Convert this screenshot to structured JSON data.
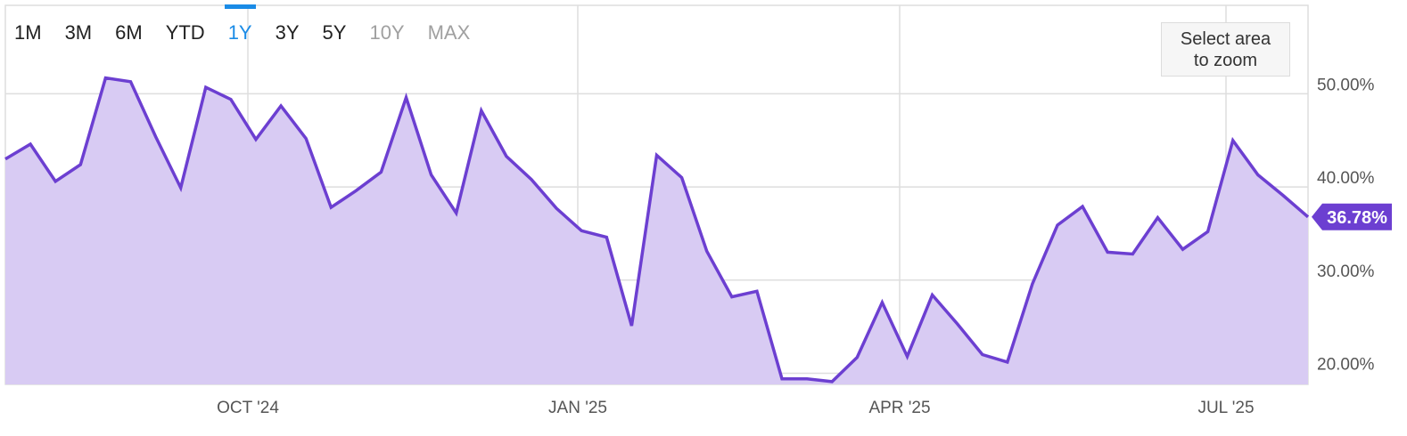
{
  "range_selector": {
    "buttons": [
      {
        "label": "1M",
        "state": "normal"
      },
      {
        "label": "3M",
        "state": "normal"
      },
      {
        "label": "6M",
        "state": "normal"
      },
      {
        "label": "YTD",
        "state": "normal"
      },
      {
        "label": "1Y",
        "state": "active"
      },
      {
        "label": "3Y",
        "state": "normal"
      },
      {
        "label": "5Y",
        "state": "normal"
      },
      {
        "label": "10Y",
        "state": "disabled"
      },
      {
        "label": "MAX",
        "state": "disabled"
      }
    ]
  },
  "zoom_hint": {
    "line1": "Select area",
    "line2": "to zoom"
  },
  "colors": {
    "line": "#6c3fd1",
    "area": "#d8cbf3",
    "badge": "#6c3fd1",
    "grid": "#dedede",
    "active": "#1a8be6"
  },
  "chart_data": {
    "type": "area",
    "x_ticks": [
      "OCT '24",
      "JAN '25",
      "APR '25",
      "JUL '25"
    ],
    "y_ticks": [
      "20.00%",
      "30.00%",
      "40.00%",
      "50.00%"
    ],
    "ylim": [
      18.8,
      59.5
    ],
    "grid": true,
    "current_value_label": "36.78%",
    "series": [
      {
        "values": [
          43.0,
          44.6,
          40.6,
          42.4,
          51.7,
          51.3,
          45.4,
          39.9,
          50.7,
          49.4,
          45.1,
          48.7,
          45.2,
          37.8,
          39.6,
          41.6,
          49.6,
          41.3,
          37.2,
          48.2,
          43.3,
          40.8,
          37.7,
          35.3,
          34.6,
          25.1,
          43.4,
          41.0,
          33.1,
          28.2,
          28.8,
          19.4,
          19.4,
          19.1,
          21.7,
          27.6,
          21.8,
          28.4,
          25.3,
          22.0,
          21.2,
          29.6,
          35.9,
          37.9,
          33.0,
          32.8,
          36.7,
          33.3,
          35.2,
          45.0,
          41.3,
          39.1,
          36.78
        ]
      }
    ]
  }
}
